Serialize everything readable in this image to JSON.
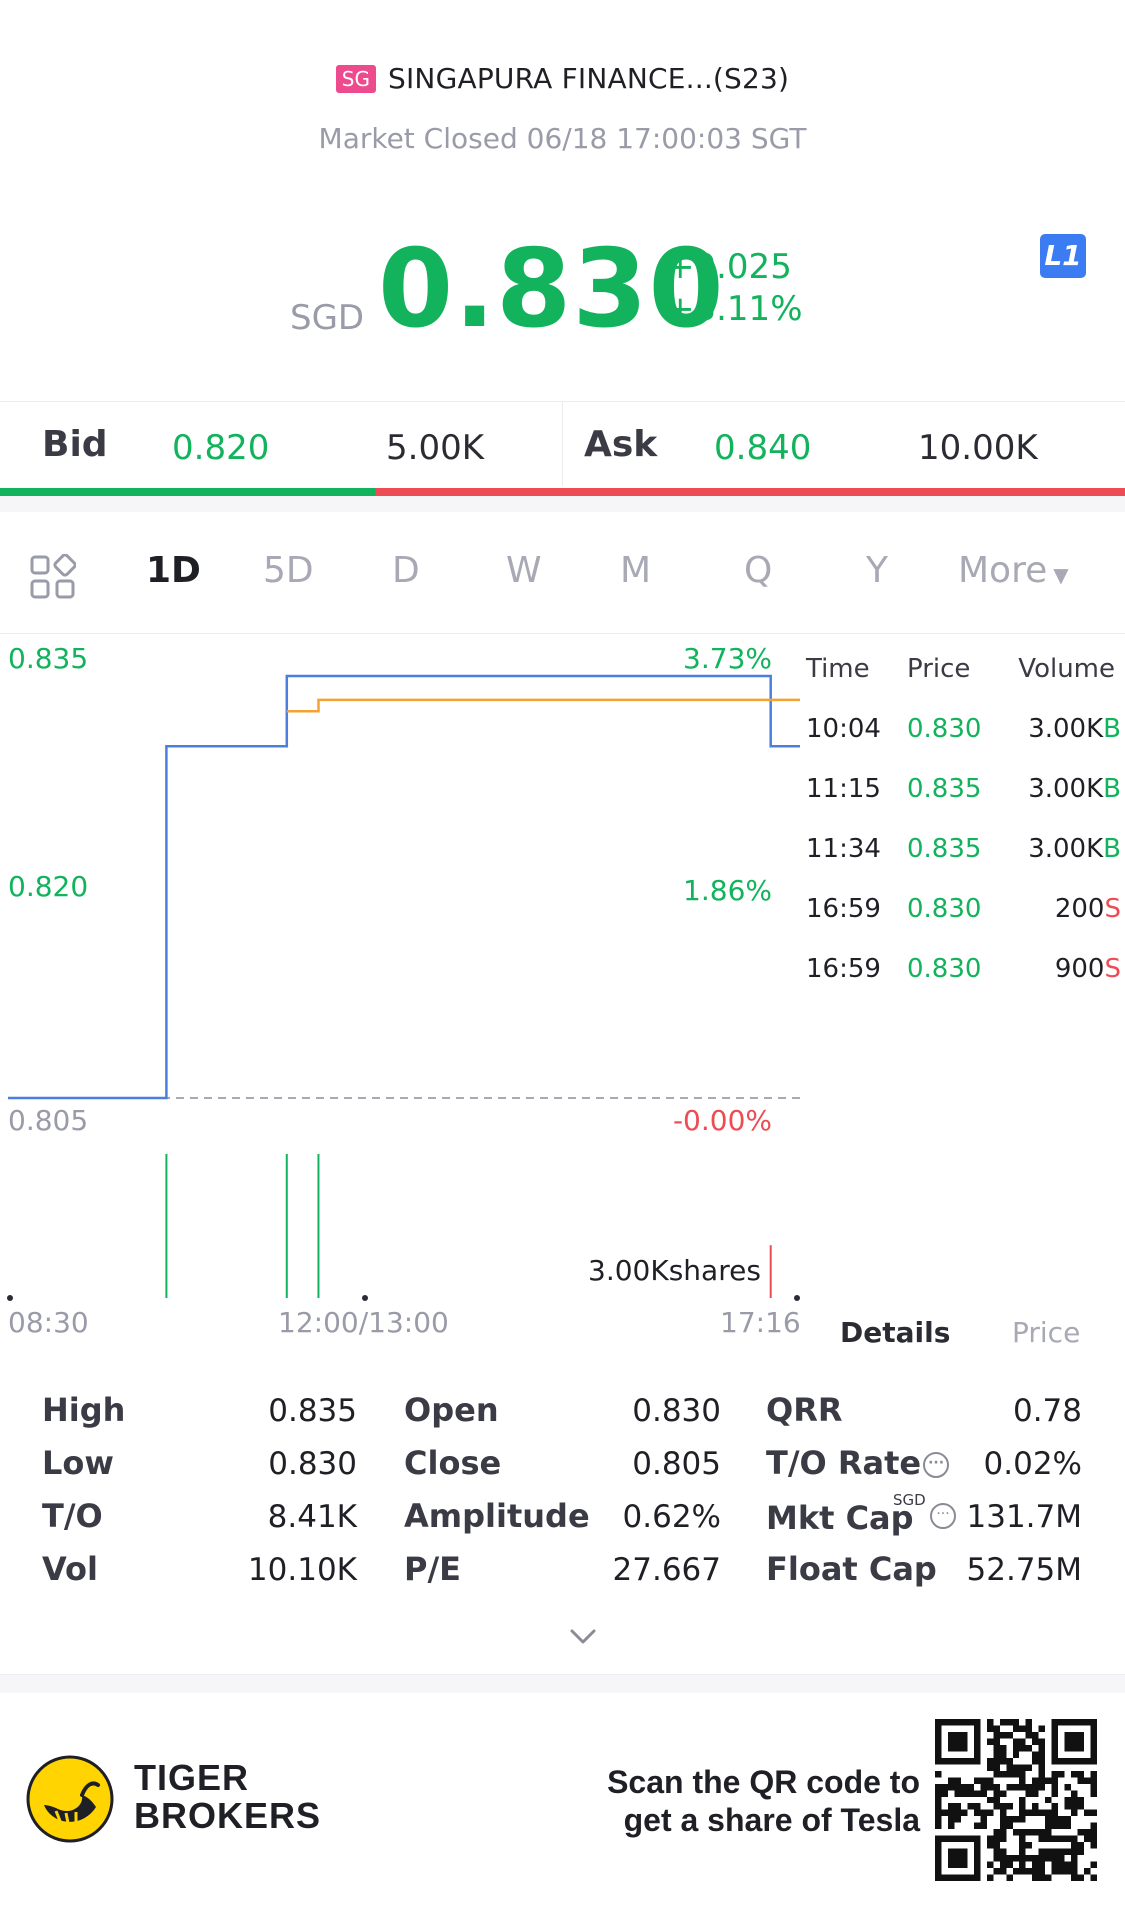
{
  "header": {
    "badge": "SG",
    "title": "SINGAPURA FINANCE...(S23)",
    "status": "Market Closed 06/18 17:00:03 SGT",
    "currency": "SGD",
    "price": "0.830",
    "change": "+0.025",
    "change_pct": "+3.11%",
    "level_icon": "L1",
    "price_color": "#12b35c"
  },
  "bidask": {
    "bid_label": "Bid",
    "bid_price": "0.820",
    "bid_size": "5.00K",
    "ask_label": "Ask",
    "ask_price": "0.840",
    "ask_size": "10.00K",
    "bid_share": 0.333
  },
  "tabs": [
    {
      "label": "1D",
      "active": true
    },
    {
      "label": "5D"
    },
    {
      "label": "D"
    },
    {
      "label": "W"
    },
    {
      "label": "M"
    },
    {
      "label": "Q"
    },
    {
      "label": "Y"
    },
    {
      "label": "More"
    }
  ],
  "chart_labels": {
    "y_top": "0.835",
    "y_mid": "0.820",
    "y_bottom": "0.805",
    "pct_top": "3.73%",
    "pct_mid": "1.86%",
    "pct_bottom": "-0.00%",
    "volume_label": "3.00Kshares",
    "x_start": "08:30",
    "x_mid": "12:00/13:00",
    "x_end": "17:16"
  },
  "chart_data": {
    "type": "line",
    "ylim": [
      0.805,
      0.835
    ],
    "x_ticks": [
      "08:30",
      "12:00/13:00",
      "17:16"
    ],
    "series": [
      {
        "color": "#4a7fe0",
        "x": [
          0.0,
          0.2,
          0.2,
          0.352,
          0.352,
          0.963,
          0.963,
          1.0
        ],
        "values": [
          0.805,
          0.805,
          0.83,
          0.83,
          0.835,
          0.835,
          0.83,
          0.83
        ]
      },
      {
        "color": "#f4a233",
        "x": [
          0.352,
          0.392,
          0.392,
          1.0
        ],
        "values": [
          0.8325,
          0.8325,
          0.8333,
          0.8333
        ]
      }
    ],
    "volume_bars": [
      {
        "x": 0.2,
        "value": 3000,
        "color": "#12b35c"
      },
      {
        "x": 0.352,
        "value": 3000,
        "color": "#12b35c"
      },
      {
        "x": 0.392,
        "value": 3000,
        "color": "#12b35c"
      },
      {
        "x": 0.963,
        "value": 1100,
        "color": "#ee4c55"
      }
    ],
    "volume_max": 3000
  },
  "trades": {
    "head_time": "Time",
    "head_price": "Price",
    "head_volume": "Volume",
    "rows": [
      {
        "time": "10:04",
        "price": "0.830",
        "volume": "3.00K",
        "side": "B"
      },
      {
        "time": "11:15",
        "price": "0.835",
        "volume": "3.00K",
        "side": "B"
      },
      {
        "time": "11:34",
        "price": "0.835",
        "volume": "3.00K",
        "side": "B"
      },
      {
        "time": "16:59",
        "price": "0.830",
        "volume": "200",
        "side": "S"
      },
      {
        "time": "16:59",
        "price": "0.830",
        "volume": "900",
        "side": "S"
      }
    ]
  },
  "detail_tabs": {
    "details": "Details",
    "price": "Price"
  },
  "stats": {
    "col1": [
      {
        "label": "High",
        "value": "0.835"
      },
      {
        "label": "Low",
        "value": "0.830"
      },
      {
        "label": "T/O",
        "value": "8.41K"
      },
      {
        "label": "Vol",
        "value": "10.10K"
      }
    ],
    "col2": [
      {
        "label": "Open",
        "value": "0.830"
      },
      {
        "label": "Close",
        "value": "0.805"
      },
      {
        "label": "Amplitude",
        "value": "0.62%"
      },
      {
        "label": "P/E",
        "value": "27.667"
      }
    ],
    "col3": [
      {
        "label": "QRR",
        "value": "0.78"
      },
      {
        "label": "T/O Rate",
        "value": "0.02%"
      },
      {
        "label": "Mkt Cap",
        "value": "131.7M",
        "sup": "SGD"
      },
      {
        "label": "Float Cap",
        "value": "52.75M"
      }
    ]
  },
  "footer": {
    "brand_line1": "TIGER",
    "brand_line2": "BROKERS",
    "promo_line1": "Scan the QR code to",
    "promo_line2": "get a share of Tesla"
  }
}
